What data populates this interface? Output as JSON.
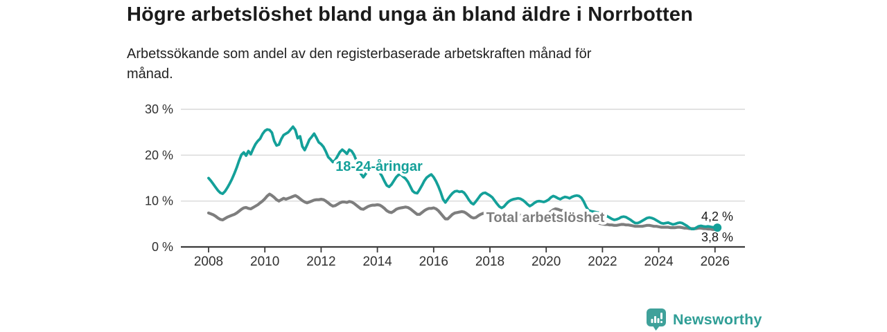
{
  "header": {
    "title": "Högre arbetslöshet bland unga än bland äldre i Norrbotten",
    "subtitle": "Arbetssökande som andel av den registerbaserade arbetskraften månad för månad.",
    "subtitle_lines": [
      "Arbetssökande som andel av den registerbaserade arbetskraften månad för",
      "månad."
    ]
  },
  "chart_data": {
    "type": "line",
    "title": "Högre arbetslöshet bland unga än bland äldre i Norrbotten",
    "unit": "%",
    "frequency": "monthly",
    "x_start": "2008-01",
    "x_end": "2026-02",
    "ylim": [
      0,
      30
    ],
    "yticks": [
      0,
      10,
      20,
      30
    ],
    "ytick_labels": [
      "0 %",
      "10 %",
      "20 %",
      "30 %"
    ],
    "xticks": [
      2008,
      2010,
      2012,
      2014,
      2016,
      2018,
      2020,
      2022,
      2024,
      2026
    ],
    "xtick_labels": [
      "2008",
      "2010",
      "2012",
      "2014",
      "2016",
      "2018",
      "2020",
      "2022",
      "2024",
      "2026"
    ],
    "grid": "horizontal",
    "legend_position": "inline-labels",
    "series": [
      {
        "name": "18-24-åringar",
        "color": "#14A099",
        "end_value_label": "4,2 %",
        "values": [
          15.0,
          14.4,
          13.7,
          13.0,
          12.3,
          11.8,
          11.6,
          12.1,
          12.9,
          13.8,
          14.8,
          16.0,
          17.3,
          18.8,
          20.1,
          20.6,
          19.9,
          20.9,
          20.2,
          21.4,
          22.4,
          23.1,
          23.6,
          24.6,
          25.3,
          25.6,
          25.5,
          24.9,
          23.1,
          22.1,
          22.3,
          23.5,
          24.4,
          24.7,
          25.0,
          25.6,
          26.2,
          25.5,
          23.7,
          24.1,
          21.9,
          21.1,
          22.2,
          23.4,
          24.0,
          24.7,
          23.8,
          22.8,
          22.4,
          21.8,
          20.8,
          19.6,
          19.1,
          18.5,
          18.9,
          19.8,
          20.7,
          21.2,
          20.8,
          20.3,
          21.2,
          20.9,
          20.1,
          18.9,
          17.4,
          15.9,
          15.2,
          15.9,
          16.8,
          17.4,
          17.6,
          17.1,
          16.8,
          16.2,
          15.4,
          14.3,
          13.4,
          13.1,
          13.6,
          14.4,
          15.2,
          15.7,
          15.8,
          15.3,
          14.9,
          14.2,
          13.2,
          12.2,
          11.8,
          11.7,
          12.5,
          13.4,
          14.4,
          15.1,
          15.5,
          15.8,
          15.2,
          14.3,
          13.2,
          11.9,
          10.4,
          9.7,
          10.4,
          11.1,
          11.7,
          12.1,
          12.2,
          12.0,
          12.1,
          11.8,
          11.1,
          10.3,
          9.6,
          9.3,
          9.9,
          10.6,
          11.3,
          11.7,
          11.8,
          11.5,
          11.2,
          10.8,
          10.1,
          9.4,
          8.8,
          8.5,
          8.8,
          9.4,
          9.9,
          10.2,
          10.4,
          10.5,
          10.6,
          10.5,
          10.2,
          9.8,
          9.3,
          8.9,
          9.2,
          9.6,
          9.9,
          10.0,
          9.9,
          9.8,
          10.0,
          10.3,
          10.8,
          11.1,
          10.9,
          10.6,
          10.4,
          10.7,
          10.9,
          10.8,
          10.6,
          10.9,
          11.1,
          11.2,
          11.1,
          10.7,
          9.9,
          8.8,
          8.0,
          7.8,
          7.7,
          7.6,
          7.5,
          7.4,
          7.2,
          7.0,
          6.7,
          6.4,
          6.1,
          5.9,
          6.0,
          6.2,
          6.5,
          6.6,
          6.5,
          6.2,
          5.9,
          5.5,
          5.2,
          5.2,
          5.4,
          5.7,
          6.0,
          6.3,
          6.4,
          6.3,
          6.1,
          5.8,
          5.5,
          5.2,
          5.1,
          5.2,
          5.3,
          5.1,
          4.9,
          5.0,
          5.2,
          5.3,
          5.2,
          4.9,
          4.6,
          4.2,
          3.9,
          3.9,
          4.2,
          4.5,
          4.6,
          4.5,
          4.4,
          4.5,
          4.4,
          4.3,
          4.3,
          4.2
        ]
      },
      {
        "name": "Total arbetslöshet",
        "color": "#7E7E7E",
        "end_value_label": "3,8 %",
        "values": [
          7.4,
          7.2,
          7.0,
          6.7,
          6.3,
          6.0,
          5.9,
          6.2,
          6.5,
          6.7,
          6.9,
          7.1,
          7.4,
          7.8,
          8.2,
          8.5,
          8.6,
          8.4,
          8.3,
          8.6,
          8.9,
          9.2,
          9.6,
          10.0,
          10.5,
          11.1,
          11.5,
          11.2,
          10.8,
          10.3,
          10.0,
          10.3,
          10.6,
          10.4,
          10.6,
          10.8,
          11.0,
          11.2,
          10.9,
          10.5,
          10.1,
          9.8,
          9.6,
          9.8,
          10.0,
          10.2,
          10.3,
          10.3,
          10.4,
          10.3,
          10.0,
          9.6,
          9.2,
          8.9,
          9.0,
          9.3,
          9.6,
          9.8,
          9.8,
          9.7,
          9.9,
          9.8,
          9.5,
          9.1,
          8.7,
          8.3,
          8.2,
          8.5,
          8.8,
          9.0,
          9.1,
          9.1,
          9.2,
          9.1,
          8.8,
          8.4,
          7.9,
          7.6,
          7.5,
          7.8,
          8.2,
          8.4,
          8.5,
          8.6,
          8.7,
          8.6,
          8.3,
          7.9,
          7.5,
          7.1,
          7.1,
          7.5,
          7.9,
          8.2,
          8.4,
          8.4,
          8.5,
          8.3,
          7.9,
          7.3,
          6.7,
          6.1,
          6.1,
          6.6,
          7.1,
          7.4,
          7.5,
          7.6,
          7.7,
          7.6,
          7.3,
          6.9,
          6.5,
          6.3,
          6.4,
          6.8,
          7.1,
          7.3,
          7.4,
          7.4,
          7.4,
          7.2,
          7.0,
          6.7,
          6.4,
          6.2,
          6.3,
          6.6,
          6.8,
          6.9,
          7.0,
          7.0,
          7.0,
          6.9,
          6.8,
          6.6,
          6.4,
          6.3,
          6.4,
          6.6,
          6.7,
          6.8,
          6.8,
          6.9,
          7.1,
          7.3,
          7.7,
          8.1,
          8.3,
          8.2,
          8.0,
          7.9,
          7.8,
          7.7,
          7.6,
          7.5,
          7.4,
          7.2,
          7.0,
          6.8,
          6.5,
          6.2,
          5.9,
          5.7,
          5.5,
          5.3,
          5.2,
          5.1,
          5.0,
          4.9,
          4.9,
          4.8,
          4.8,
          4.7,
          4.7,
          4.8,
          4.9,
          4.9,
          4.8,
          4.8,
          4.7,
          4.6,
          4.5,
          4.5,
          4.5,
          4.5,
          4.6,
          4.7,
          4.7,
          4.6,
          4.5,
          4.5,
          4.4,
          4.3,
          4.3,
          4.3,
          4.3,
          4.2,
          4.2,
          4.2,
          4.3,
          4.3,
          4.2,
          4.1,
          4.1,
          4.0,
          4.0,
          4.0,
          4.0,
          4.1,
          4.1,
          4.0,
          4.0,
          3.9,
          3.9,
          3.8,
          3.8,
          3.8
        ]
      }
    ]
  },
  "footer": {
    "brand": "Newsworthy"
  },
  "colors": {
    "accent_teal": "#14A099",
    "line_gray": "#7E7E7E",
    "axis": "#3A3A3A",
    "grid": "#D8D8D8",
    "brand_teal": "#2F9E96",
    "brand_icon_teal": "#3FA19A"
  }
}
